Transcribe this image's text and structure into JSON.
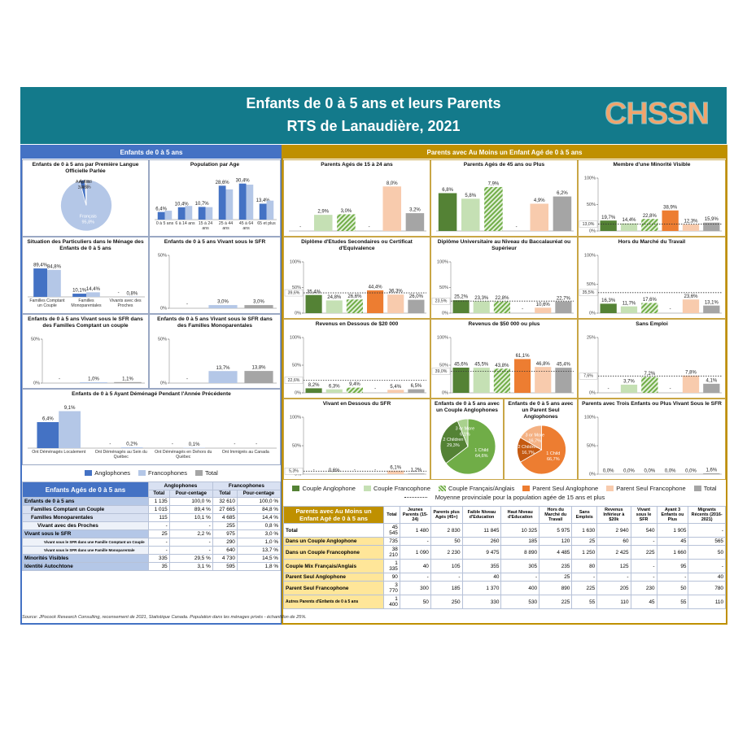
{
  "header": {
    "title": "Enfants de 0 à 5 ans et leurs Parents",
    "subtitle": "RTS de Lanaudière, 2021",
    "logo": "CHSSN"
  },
  "left_section": "Enfants de 0 à 5 ans",
  "right_section": "Parents avec Au Moins un Enfant Agé de 0 à 5 ans",
  "legend_left": [
    {
      "name": "Anglophones",
      "color": "#4472c4"
    },
    {
      "name": "Francophones",
      "color": "#b4c7e7"
    },
    {
      "name": "Total",
      "color": "#a5a5a5"
    }
  ],
  "legend_right": [
    {
      "name": "Couple Anglophone",
      "color": "#548235"
    },
    {
      "name": "Couple Francophone",
      "color": "#c5e0b4"
    },
    {
      "name": "Couple Français/Anglais",
      "color": "#70ad47",
      "pattern": "hatch"
    },
    {
      "name": "Parent Seul Anglophone",
      "color": "#ed7d31"
    },
    {
      "name": "Parent Seul Francophone",
      "color": "#f8cbad"
    },
    {
      "name": "Total",
      "color": "#a5a5a5"
    }
  ],
  "average_label": "Moyenne provinciale pour la population agée de 15 ans et plus",
  "chart_data": [
    {
      "type": "pie",
      "title": "Enfants de 0 à 5 ans par Première Langue Officielle Parlée",
      "labels": [
        "Français",
        "Anglais",
        "Autres"
      ],
      "values": [
        95.8,
        3.4,
        0.8
      ],
      "value_labels": [
        "95,8%",
        "3,4%",
        "0,8%"
      ],
      "colors": [
        "#b4c7e7",
        "#4472c4",
        "#a5a5a5"
      ]
    },
    {
      "type": "bar",
      "title": "Population par Age",
      "categories": [
        "0 à 5 ans",
        "6 à 14 ans",
        "15 à 24 ans",
        "25 à 44 ans",
        "45 à 64 ans",
        "65 et plus"
      ],
      "series": [
        {
          "values": [
            6.4,
            10.4,
            10.7,
            28.6,
            30.4,
            13.4
          ],
          "value_labels": [
            "6,4%",
            "10,4%",
            "10,7%",
            "28,6%",
            "30,4%",
            "13,4%"
          ]
        },
        {
          "values": [
            7.5,
            11.5,
            10.5,
            25.5,
            29.5,
            16.0
          ]
        }
      ],
      "ylim": [
        0,
        35
      ]
    },
    {
      "type": "bar",
      "title": "Situation des Particuliers dans le Ménage des Enfants de 0 à 5 ans",
      "categories": [
        "Familles Comptant un Couple",
        "Familles Monoparentales",
        "Vivants avec des Proches"
      ],
      "series": [
        {
          "values": [
            89.4,
            10.1,
            null
          ],
          "value_labels": [
            "89,4%",
            "10,1%",
            "-"
          ]
        },
        {
          "values": [
            84.8,
            14.4,
            0.8
          ],
          "value_labels": [
            "84,8%",
            "14,4%",
            "0,8%"
          ]
        }
      ],
      "ylim": [
        0,
        110
      ]
    },
    {
      "type": "bar",
      "title": "Enfants de 0 à 5 ans Vivant sous le SFR",
      "values": [
        null,
        3.0,
        3.0
      ],
      "value_labels": [
        "-",
        "3,0%",
        "3,0%"
      ],
      "ylim": [
        0,
        50
      ],
      "yticks": [
        {
          "value": 0,
          "label": "0%"
        },
        {
          "value": 50,
          "label": "50%"
        }
      ]
    },
    {
      "type": "bar",
      "title": "Enfants de 0 à 5 ans Vivant sous le SFR dans des Familles Comptant un couple",
      "values": [
        null,
        1.0,
        1.1
      ],
      "value_labels": [
        "-",
        "1,0%",
        "1,1%"
      ],
      "ylim": [
        0,
        50
      ],
      "yticks": [
        {
          "value": 0,
          "label": "0%"
        },
        {
          "value": 50,
          "label": "50%"
        }
      ]
    },
    {
      "type": "bar",
      "title": "Enfants de 0 à 5 ans Vivant sous le SFR dans des Familles Monoparentales",
      "values": [
        null,
        13.7,
        13.8
      ],
      "value_labels": [
        "-",
        "13,7%",
        "13,8%"
      ],
      "ylim": [
        0,
        50
      ],
      "yticks": [
        {
          "value": 0,
          "label": "0%"
        },
        {
          "value": 50,
          "label": "50%"
        }
      ]
    },
    {
      "type": "bar",
      "title": "Enfants de 0 à 5 Ayant Déménagé Pendant l'Année Précédente",
      "categories": [
        "Ont Déménagés Localement",
        "Ont Déménagés au Sein du Québec",
        "Ont Déménagés en Dehors du Québec",
        "Ont Immigrés au Canada"
      ],
      "series": [
        {
          "values": [
            6.4,
            null,
            null,
            null
          ],
          "value_labels": [
            "6,4%",
            "-",
            "-",
            "-"
          ]
        },
        {
          "values": [
            9.1,
            0.2,
            0.1,
            null
          ],
          "value_labels": [
            "9,1%",
            "0,2%",
            "0,1%",
            "-"
          ]
        }
      ],
      "ylim": [
        0,
        10
      ]
    },
    {
      "type": "bar",
      "title": "Parents Agés de 15 à 24 ans",
      "values": [
        null,
        2.9,
        3.0,
        null,
        8.0,
        3.2
      ],
      "value_labels": [
        "-",
        "2,9%",
        "3,0%",
        "-",
        "8,0%",
        "3,2%"
      ],
      "ylim": [
        0,
        9.5
      ]
    },
    {
      "type": "bar",
      "title": "Parents Agés de 45 ans ou Plus",
      "values": [
        6.8,
        5.8,
        7.9,
        null,
        4.9,
        6.2
      ],
      "value_labels": [
        "6,8%",
        "5,8%",
        "7,9%",
        "-",
        "4,9%",
        "6,2%"
      ],
      "ylim": [
        0,
        9.5
      ]
    },
    {
      "type": "bar",
      "title": "Membre d'une Minorité Visible",
      "values": [
        19.7,
        14.4,
        22.8,
        38.9,
        12.3,
        15.9
      ],
      "value_labels": [
        "19,7%",
        "14,4%",
        "22,8%",
        "38,9%",
        "12,3%",
        "15,9%"
      ],
      "average": 13.0,
      "average_value_label": "13,0%",
      "ylim": [
        0,
        100
      ],
      "yticks": [
        {
          "value": 0,
          "label": "0%"
        },
        {
          "value": 50,
          "label": "50%"
        },
        {
          "value": 100,
          "label": "100%"
        }
      ]
    },
    {
      "type": "bar",
      "title": "Diplôme d'Etudes Secondaires ou Certificat d'Equivalence",
      "values": [
        35.4,
        24.8,
        26.6,
        44.4,
        36.3,
        26.0
      ],
      "value_labels": [
        "35,4%",
        "24,8%",
        "26,6%",
        "44,4%",
        "36,3%",
        "26,0%"
      ],
      "average": 39.6,
      "average_value_label": "39,6%",
      "ylim": [
        0,
        100
      ],
      "yticks": [
        {
          "value": 0,
          "label": "0%"
        },
        {
          "value": 50,
          "label": "50%"
        },
        {
          "value": 100,
          "label": "100%"
        }
      ]
    },
    {
      "type": "bar",
      "title": "Diplôme Universitaire au Niveau du Baccalauréat ou Supérieur",
      "values": [
        25.2,
        23.3,
        22.8,
        null,
        10.6,
        22.7
      ],
      "value_labels": [
        "25,2%",
        "23,3%",
        "22,8%",
        "-",
        "10,6%",
        "22,7%"
      ],
      "average": 23.5,
      "average_value_label": "23,5%",
      "ylim": [
        0,
        100
      ],
      "yticks": [
        {
          "value": 0,
          "label": "0%"
        },
        {
          "value": 50,
          "label": "50%"
        },
        {
          "value": 100,
          "label": "100%"
        }
      ]
    },
    {
      "type": "bar",
      "title": "Hors du Marché du Travail",
      "values": [
        16.3,
        11.7,
        17.6,
        null,
        23.6,
        13.1
      ],
      "value_labels": [
        "16,3%",
        "11,7%",
        "17,6%",
        "-",
        "23,6%",
        "13,1%"
      ],
      "average": 35.5,
      "average_value_label": "35,5%",
      "ylim": [
        0,
        100
      ],
      "yticks": [
        {
          "value": 0,
          "label": "0%"
        },
        {
          "value": 50,
          "label": "50%"
        },
        {
          "value": 100,
          "label": "100%"
        }
      ]
    },
    {
      "type": "bar",
      "title": "Revenus en Dessous de $20 000",
      "values": [
        8.2,
        6.3,
        9.4,
        null,
        5.4,
        6.5
      ],
      "value_labels": [
        "8,2%",
        "6,3%",
        "9,4%",
        "-",
        "5,4%",
        "6,5%"
      ],
      "average": 22.6,
      "average_value_label": "22,6%",
      "ylim": [
        0,
        100
      ],
      "yticks": [
        {
          "value": 0,
          "label": "0%"
        },
        {
          "value": 50,
          "label": "50%"
        },
        {
          "value": 100,
          "label": "100%"
        }
      ]
    },
    {
      "type": "bar",
      "title": "Revenus de $50 000 ou plus",
      "values": [
        45.6,
        45.5,
        43.8,
        61.1,
        46.8,
        45.4
      ],
      "value_labels": [
        "45,6%",
        "45,5%",
        "43,8%",
        "61,1%",
        "46,8%",
        "45,4%"
      ],
      "average": 39.0,
      "average_value_label": "39,0%",
      "ylim": [
        0,
        100
      ],
      "yticks": [
        {
          "value": 0,
          "label": "0%"
        },
        {
          "value": 50,
          "label": "50%"
        },
        {
          "value": 100,
          "label": "100%"
        }
      ]
    },
    {
      "type": "bar",
      "title": "Sans Emploi",
      "values": [
        null,
        3.7,
        7.2,
        null,
        7.8,
        4.1
      ],
      "value_labels": [
        "-",
        "3,7%",
        "7,2%",
        "-",
        "7,8%",
        "4,1%"
      ],
      "average": 7.6,
      "average_value_label": "7,6%",
      "ylim": [
        0,
        25
      ],
      "yticks": [
        {
          "value": 0,
          "label": "0%"
        },
        {
          "value": 25,
          "label": "25%"
        }
      ]
    },
    {
      "type": "bar",
      "title": "Vivant en Dessous du SFR",
      "values": [
        null,
        0.6,
        null,
        null,
        6.1,
        1.2
      ],
      "value_labels": [
        "-",
        "0,6%",
        "-",
        "-",
        "6,1%",
        "1,2%"
      ],
      "average": 5.3,
      "average_value_label": "5,3%",
      "ylim": [
        0,
        100
      ],
      "yticks": [
        {
          "value": 0,
          "label": "0%"
        },
        {
          "value": 50,
          "label": "50%"
        },
        {
          "value": 100,
          "label": "100%"
        }
      ]
    },
    {
      "type": "pie",
      "title": "Enfants de 0 à 5 ans avec un Couple Anglophones",
      "labels": [
        "1 Child",
        "2 Children",
        "3 or More"
      ],
      "values": [
        64.6,
        29.3,
        6.1
      ],
      "value_labels": [
        "64,6%",
        "29,3%",
        "6,1%"
      ],
      "colors": [
        "#70ad47",
        "#548235",
        "#a9d18e"
      ]
    },
    {
      "type": "pie",
      "title": "Enfants de 0 à 5 ans avec un Parent Seul Anglophones",
      "labels": [
        "1 Child",
        "2 Children",
        "3 or More"
      ],
      "values": [
        66.7,
        16.7,
        16.7
      ],
      "value_labels": [
        "66,7%",
        "16,7%",
        "16,7%"
      ],
      "colors": [
        "#ed7d31",
        "#c55a11",
        "#f4b183"
      ]
    },
    {
      "type": "bar",
      "title": "Parents avec Trois Enfants ou Plus Vivant Sous le SFR",
      "values": [
        0.0,
        0.0,
        0.0,
        0.0,
        0.0,
        1.6
      ],
      "value_labels": [
        "0,0%",
        "0,0%",
        "0,0%",
        "0,0%",
        "0,0%",
        "1,6%"
      ],
      "ylim": [
        0,
        100
      ],
      "yticks": [
        {
          "value": 0,
          "label": "0%"
        },
        {
          "value": 50,
          "label": "50%"
        },
        {
          "value": 100,
          "label": "100%"
        }
      ]
    }
  ],
  "table_left": {
    "title": "Enfants Agés de 0 à 5 ans",
    "groups": [
      "Anglophones",
      "Francophones"
    ],
    "columns": [
      "Total",
      "Pour-centage",
      "Total",
      "Pour-centage"
    ],
    "rows": [
      {
        "label": "Enfants de 0 à 5 ans",
        "cells": [
          "1 135",
          "100,0 %",
          "32 610",
          "100,0 %"
        ]
      },
      {
        "label": "Familles Comptant un Couple",
        "cells": [
          "1 015",
          "89,4 %",
          "27 665",
          "84,8 %"
        ]
      },
      {
        "label": "Familles Monoparentales",
        "cells": [
          "115",
          "10,1 %",
          "4 685",
          "14,4 %"
        ]
      },
      {
        "label": "Vivant avec des Proches",
        "cells": [
          "-",
          "-",
          "255",
          "0,8 %"
        ]
      },
      {
        "label": "Vivant sous le SFR",
        "cells": [
          "25",
          "2,2 %",
          "975",
          "3,0 %"
        ]
      },
      {
        "label": "Vivant sous le SFR dans une Famille Comptant un Couple",
        "cells": [
          "-",
          "-",
          "290",
          "1,0 %"
        ]
      },
      {
        "label": "Vivant sous le SFR dans une Famille Monoparentale",
        "cells": [
          "-",
          "-",
          "640",
          "13,7 %"
        ]
      },
      {
        "label": "Minorités Visibles",
        "cells": [
          "335",
          "29,5 %",
          "4 730",
          "14,5 %"
        ]
      },
      {
        "label": "Identité Autochtone",
        "cells": [
          "35",
          "3,1 %",
          "595",
          "1,8 %"
        ]
      }
    ]
  },
  "table_right": {
    "title": "Parents avec Au Moins un Enfant Agé de 0 à 5 ans",
    "columns": [
      "Total",
      "Jeunes Parents (15-24)",
      "Parents plus Agés (45+)",
      "Faible Niveau d'Education",
      "Haut Niveau d'Education",
      "Hors du Marché du Travail",
      "Sans Emplois",
      "Revenus Inférieur à $20k",
      "Vivant sous le SFR",
      "Ayant 3 Enfants ou Plus",
      "Migrants Récents (2016-2021)"
    ],
    "rows": [
      {
        "label": "Total",
        "cells": [
          "45 545",
          "1 480",
          "2 830",
          "11 845",
          "10 325",
          "5 975",
          "1 630",
          "2 940",
          "540",
          "1 905",
          "-"
        ]
      },
      {
        "label": "Dans un Couple Anglophone",
        "cells": [
          "735",
          "-",
          "50",
          "260",
          "185",
          "120",
          "25",
          "60",
          "-",
          "45",
          "565"
        ]
      },
      {
        "label": "Dans un Couple Francophone",
        "cells": [
          "38 210",
          "1 090",
          "2 230",
          "9 475",
          "8 890",
          "4 485",
          "1 250",
          "2 425",
          "225",
          "1 660",
          "50"
        ]
      },
      {
        "label": "Couple Mix Français/Anglais",
        "cells": [
          "1 335",
          "40",
          "105",
          "355",
          "305",
          "235",
          "80",
          "125",
          "-",
          "95",
          "-"
        ]
      },
      {
        "label": "Parent Seul Anglophone",
        "cells": [
          "90",
          "-",
          "-",
          "40",
          "-",
          "25",
          "-",
          "-",
          "-",
          "-",
          "40"
        ]
      },
      {
        "label": "Parent Seul Francophone",
        "cells": [
          "3 770",
          "300",
          "185",
          "1 370",
          "400",
          "890",
          "225",
          "205",
          "230",
          "50",
          "780"
        ]
      },
      {
        "label": "Autres Parents d'Enfants de 0 à 5 ans",
        "cells": [
          "1 400",
          "50",
          "250",
          "330",
          "530",
          "225",
          "55",
          "110",
          "45",
          "55",
          "110"
        ]
      }
    ]
  },
  "source": "Source: JPocock Research Consulting, recensement de 2021, Statistique Canada. Population dans les ménages privés - échantillon de 25%."
}
